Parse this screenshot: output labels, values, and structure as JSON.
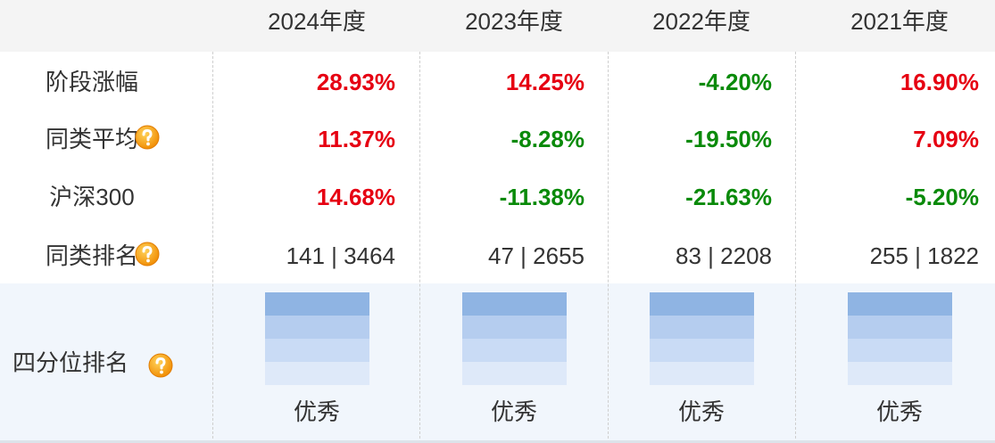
{
  "header": [
    "2024年度",
    "2023年度",
    "2022年度",
    "2021年度"
  ],
  "rows": [
    {
      "label": "阶段涨幅",
      "cells": [
        "28.93%",
        "14.25%",
        "-4.20%",
        "16.90%"
      ]
    },
    {
      "label": "同类平均",
      "cells": [
        "11.37%",
        "-8.28%",
        "-19.50%",
        "7.09%"
      ]
    },
    {
      "label": "沪深300",
      "cells": [
        "14.68%",
        "-11.38%",
        "-21.63%",
        "-5.20%"
      ]
    },
    {
      "label": "同类排名",
      "cells": [
        "141 | 3464",
        "47 | 2655",
        "83 | 2208",
        "255 | 1822"
      ]
    }
  ],
  "quartile": {
    "label": "四分位排名",
    "cells": [
      "优秀",
      "优秀",
      "优秀",
      "优秀"
    ]
  }
}
